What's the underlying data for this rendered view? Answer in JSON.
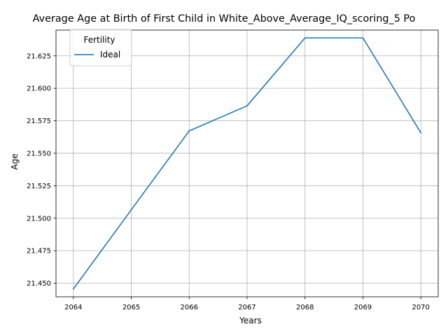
{
  "chart_data": {
    "type": "line",
    "title": "Average Age at Birth of First Child in White_Above_Average_IQ_scoring_5 Po",
    "xlabel": "Years",
    "ylabel": "Age",
    "x": [
      2064,
      2065,
      2066,
      2067,
      2068,
      2069,
      2070
    ],
    "x_ticks": [
      "2064",
      "2065",
      "2066",
      "2067",
      "2068",
      "2069",
      "2070"
    ],
    "y_ticks": [
      "21.450",
      "21.475",
      "21.500",
      "21.525",
      "21.550",
      "21.575",
      "21.600",
      "21.625"
    ],
    "xlim": [
      2063.7,
      2070.3
    ],
    "ylim": [
      21.4395,
      21.6448
    ],
    "grid": true,
    "legend": {
      "title": "Fertility",
      "position": "top-left"
    },
    "series": [
      {
        "name": "Ideal",
        "color": "#1f77b4",
        "values": [
          21.4455,
          21.5065,
          21.5672,
          21.5865,
          21.6388,
          21.6388,
          21.5658
        ]
      }
    ]
  }
}
